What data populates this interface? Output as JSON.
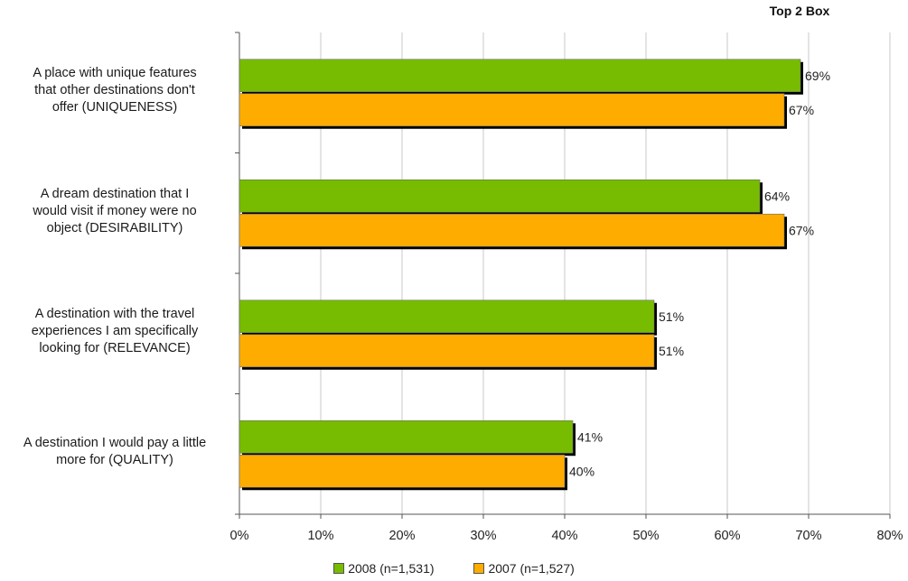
{
  "chart_data": {
    "type": "bar",
    "orientation": "horizontal",
    "header": "Top 2 Box",
    "categories": [
      "A place with unique features that other destinations don't offer (UNIQUENESS)",
      "A dream destination that I would visit if money were no object (DESIRABILITY)",
      "A destination with the travel experiences I am specifically looking for (RELEVANCE)",
      "A destination I would pay a little more for (QUALITY)"
    ],
    "category_lines": [
      [
        "A place with unique features",
        "that other destinations don't",
        "offer (UNIQUENESS)"
      ],
      [
        "A dream destination that I",
        "would visit if money were no",
        "object (DESIRABILITY)"
      ],
      [
        "A destination with the travel",
        "experiences I am specifically",
        "looking for (RELEVANCE)"
      ],
      [
        "A destination I would pay a little",
        "more for (QUALITY)"
      ]
    ],
    "series": [
      {
        "name": "2008 (n=1,531)",
        "color": "#77bc00",
        "values": [
          69,
          64,
          51,
          41
        ],
        "labels": [
          "69%",
          "64%",
          "51%",
          "41%"
        ]
      },
      {
        "name": "2007 (n=1,527)",
        "color": "#ffac00",
        "values": [
          67,
          67,
          51,
          40
        ],
        "labels": [
          "67%",
          "67%",
          "51%",
          "40%"
        ]
      }
    ],
    "xlim": [
      0,
      80
    ],
    "xticks": [
      0,
      10,
      20,
      30,
      40,
      50,
      60,
      70,
      80
    ],
    "xtick_labels": [
      "0%",
      "10%",
      "20%",
      "30%",
      "40%",
      "50%",
      "60%",
      "70%",
      "80%"
    ],
    "grid": true,
    "legend_position": "bottom"
  }
}
